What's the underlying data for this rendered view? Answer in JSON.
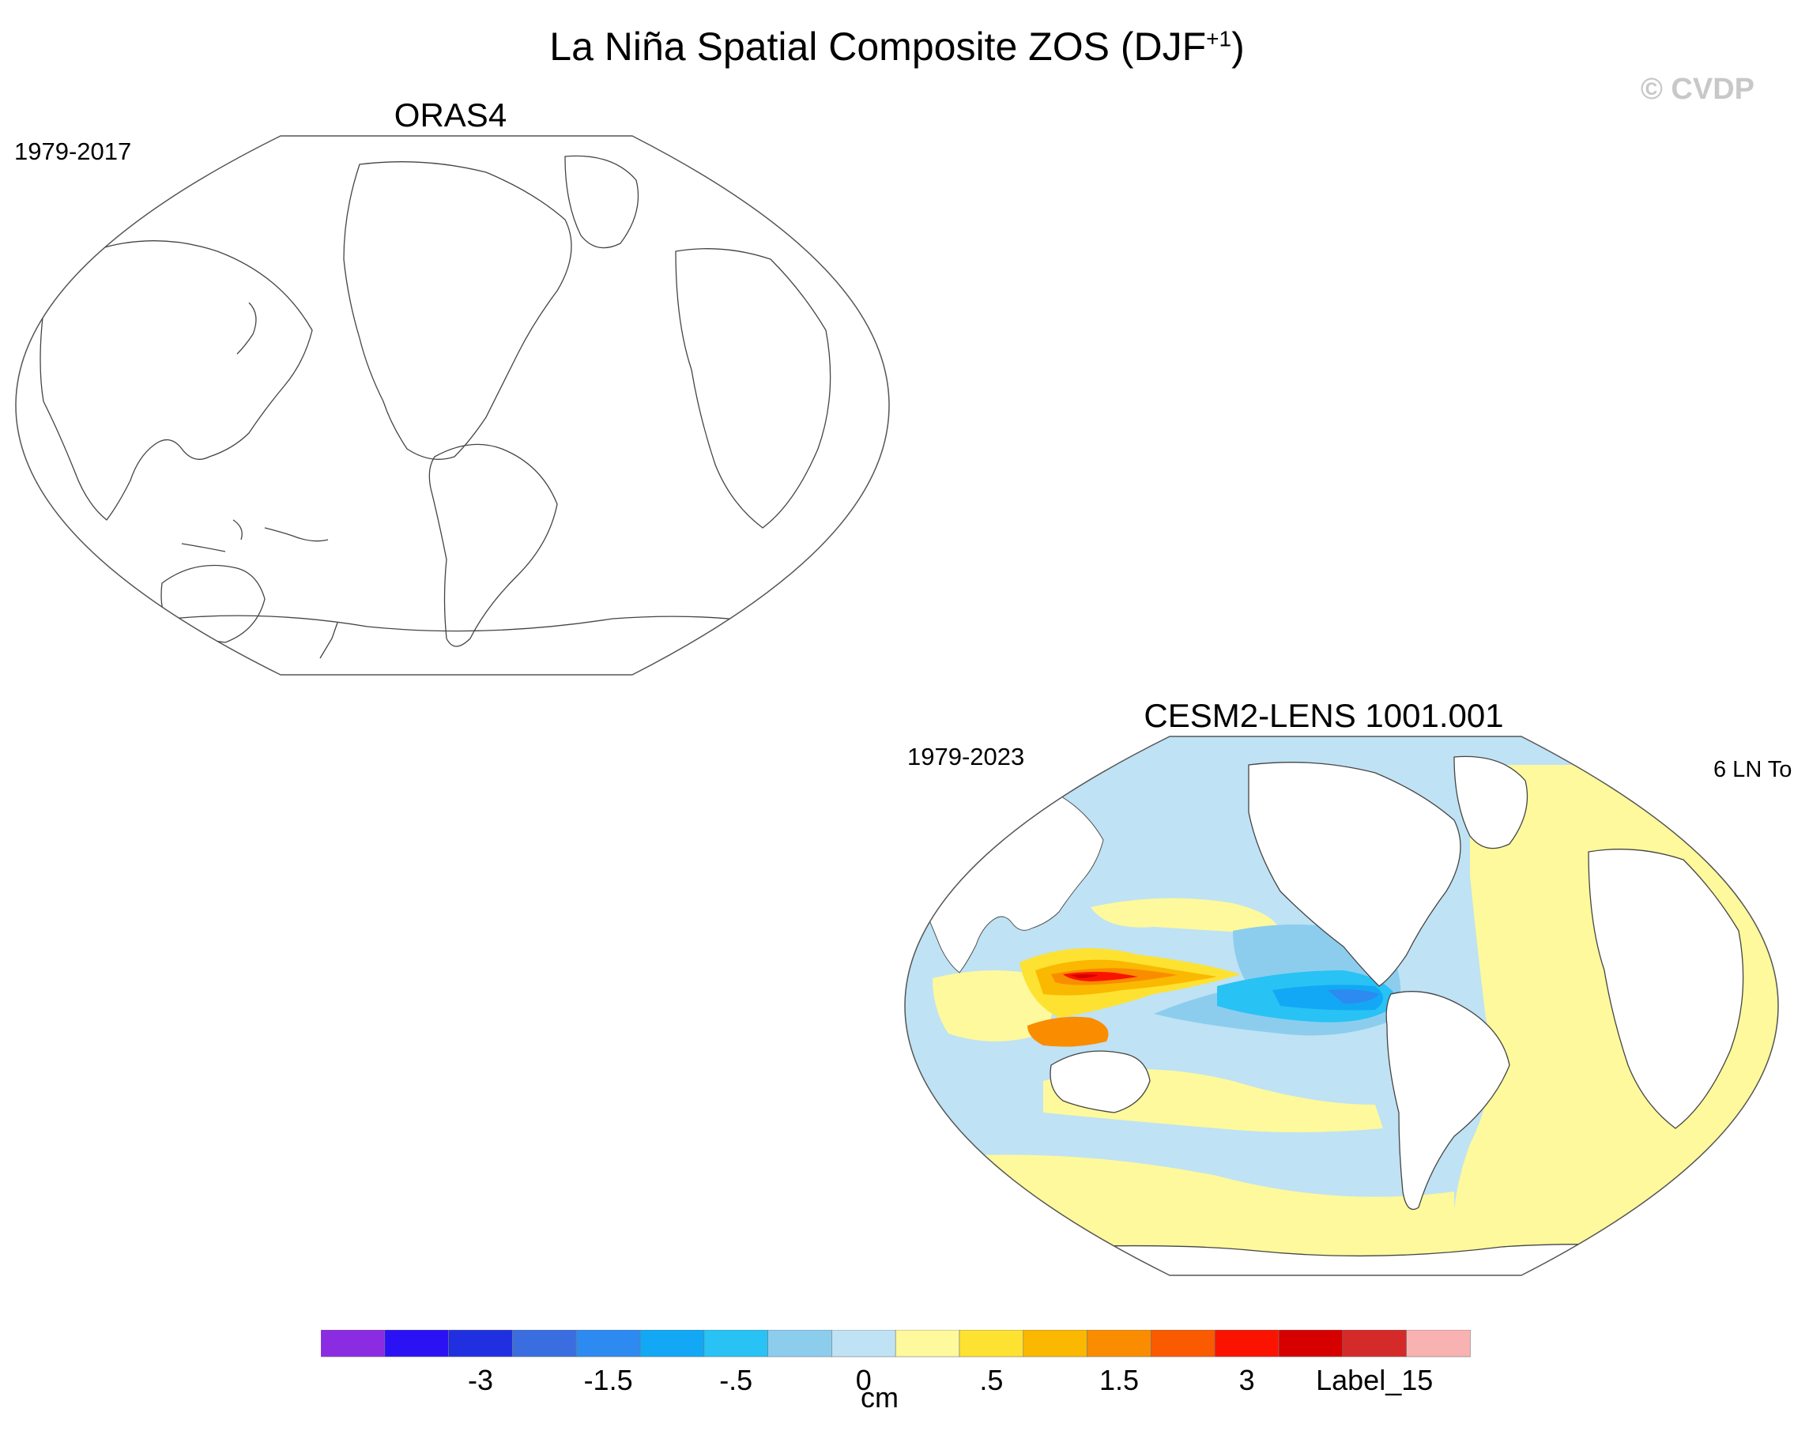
{
  "title": "La Niña Spatial Composite ZOS (DJF",
  "title_sup": "+1",
  "title_end": ")",
  "watermark": "© CVDP",
  "panels": [
    {
      "name": "ORAS4",
      "period": "1979-2017",
      "right_label": ""
    },
    {
      "name": "CESM2-LENS 1001.001",
      "period": "1979-2023",
      "right_label": "6 LN To"
    }
  ],
  "colorbar": {
    "units": "cm",
    "colors": [
      "#8b2be2",
      "#2b12f5",
      "#2030e0",
      "#3a6ee0",
      "#2c8af0",
      "#12a8f5",
      "#28c2f5",
      "#8ccdee",
      "#bfe2f4",
      "#fdf99c",
      "#fde232",
      "#fab800",
      "#fa8c00",
      "#fa5a00",
      "#fa1400",
      "#d60000",
      "#d42a2a",
      "#f9b2b2"
    ],
    "labels": [
      "-3",
      "-1.5",
      "-.5",
      "0",
      ".5",
      "1.5",
      "3",
      "Label_15"
    ],
    "label_box_index": [
      3,
      5,
      7,
      9,
      11,
      13,
      15,
      17
    ]
  },
  "chart_data": {
    "type": "heatmap",
    "title": "La Niña Spatial Composite ZOS (DJF+1)",
    "variable": "ZOS",
    "units": "cm",
    "projection": "Robinson",
    "levels": [
      -4,
      -3.5,
      -3,
      -2.5,
      -1.5,
      -1,
      -0.5,
      -0.25,
      0,
      0.25,
      0.5,
      1,
      1.5,
      2,
      3,
      3.5,
      4
    ],
    "colorbar_labels": [
      "-3",
      "-1.5",
      "-.5",
      "0",
      ".5",
      "1.5",
      "3",
      "Label_15"
    ],
    "panels": [
      {
        "dataset": "ORAS4",
        "period": "1979-2017",
        "data_shown": false
      },
      {
        "dataset": "CESM2-LENS 1001.001",
        "period": "1979-2023",
        "events": "6 LN To",
        "features": [
          {
            "region": "Western tropical Pacific / Maritime Continent",
            "value_range_cm": [
              1.5,
              4
            ]
          },
          {
            "region": "Eastern equatorial Pacific",
            "value_range_cm": [
              -1.5,
              -0.5
            ]
          },
          {
            "region": "North & South Pacific midlatitudes",
            "value_range_cm": [
              -0.25,
              0
            ]
          },
          {
            "region": "Atlantic Ocean",
            "value_range_cm": [
              0,
              0.5
            ]
          },
          {
            "region": "Southern Ocean",
            "value_range_cm": [
              0,
              0.5
            ]
          }
        ]
      }
    ]
  }
}
